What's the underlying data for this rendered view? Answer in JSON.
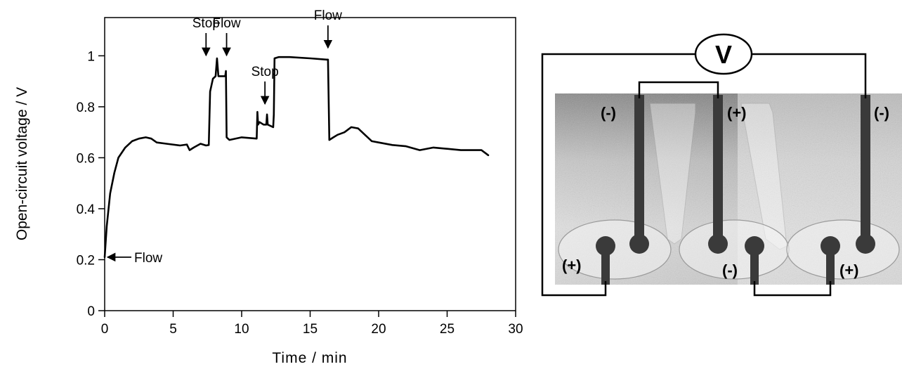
{
  "chart_data": {
    "type": "line",
    "xlabel": "Time / min",
    "ylabel": "Open-circuit voltage / V",
    "xlim": [
      0,
      30
    ],
    "ylim": [
      0,
      1.15
    ],
    "xticks": [
      0,
      5,
      10,
      15,
      20,
      25,
      30
    ],
    "xtick_labels": [
      "0",
      "5",
      "10",
      "15",
      "20",
      "25",
      "30"
    ],
    "yticks": [
      0,
      0.2,
      0.4,
      0.6,
      0.8,
      1
    ],
    "ytick_labels": [
      "0",
      "0.2",
      "0.4",
      "0.6",
      "0.8",
      "1"
    ],
    "grid": false,
    "series": [
      {
        "color": "#000000",
        "x": [
          0,
          0.15,
          0.4,
          0.7,
          1.0,
          1.5,
          2.0,
          2.5,
          3.0,
          3.4,
          3.8,
          4.5,
          5.5,
          6.0,
          6.2,
          6.5,
          7.0,
          7.4,
          7.6,
          7.7,
          7.9,
          8.1,
          8.2,
          8.3,
          8.6,
          8.8,
          8.85,
          8.9,
          9.1,
          10.0,
          11.1,
          11.15,
          11.2,
          11.3,
          11.6,
          11.8,
          11.85,
          11.9,
          12.3,
          12.35,
          12.4,
          12.7,
          13.5,
          15.0,
          16.2,
          16.3,
          16.4,
          16.7,
          17.0,
          17.5,
          18.0,
          18.5,
          19.0,
          19.5,
          20.0,
          21.0,
          22.0,
          23.0,
          24.0,
          25.0,
          26.0,
          27.0,
          27.5,
          28.0
        ],
        "y": [
          0.21,
          0.33,
          0.46,
          0.54,
          0.6,
          0.64,
          0.665,
          0.675,
          0.68,
          0.675,
          0.66,
          0.655,
          0.648,
          0.652,
          0.63,
          0.64,
          0.655,
          0.648,
          0.65,
          0.86,
          0.91,
          0.92,
          0.99,
          0.92,
          0.92,
          0.92,
          0.94,
          0.68,
          0.67,
          0.68,
          0.675,
          0.78,
          0.73,
          0.74,
          0.73,
          0.73,
          0.77,
          0.73,
          0.72,
          0.77,
          0.99,
          0.995,
          0.995,
          0.99,
          0.985,
          0.985,
          0.67,
          0.68,
          0.69,
          0.7,
          0.72,
          0.715,
          0.69,
          0.665,
          0.66,
          0.65,
          0.645,
          0.63,
          0.64,
          0.635,
          0.63,
          0.63,
          0.63,
          0.61
        ]
      }
    ],
    "annotations": [
      {
        "text": "Flow",
        "x": 0,
        "y": 0.21,
        "arrow": "left"
      },
      {
        "text": "Stop",
        "x": 7.4,
        "y": 0.99,
        "arrow": "down"
      },
      {
        "text": "Flow",
        "x": 8.9,
        "y": 0.99,
        "arrow": "down"
      },
      {
        "text": "Stop",
        "x": 11.7,
        "y": 0.8,
        "arrow": "down"
      },
      {
        "text": "Flow",
        "x": 16.3,
        "y": 1.02,
        "arrow": "down"
      }
    ]
  },
  "diagram": {
    "voltmeter_label": "V",
    "electrodes": [
      {
        "label": "(-)",
        "position": "left-top"
      },
      {
        "label": "(+)",
        "position": "middle-top"
      },
      {
        "label": "(-)",
        "position": "right-top"
      },
      {
        "label": "(+)",
        "position": "left-bottom"
      },
      {
        "label": "(-)",
        "position": "middle-bottom"
      },
      {
        "label": "(+)",
        "position": "right-bottom"
      }
    ]
  }
}
